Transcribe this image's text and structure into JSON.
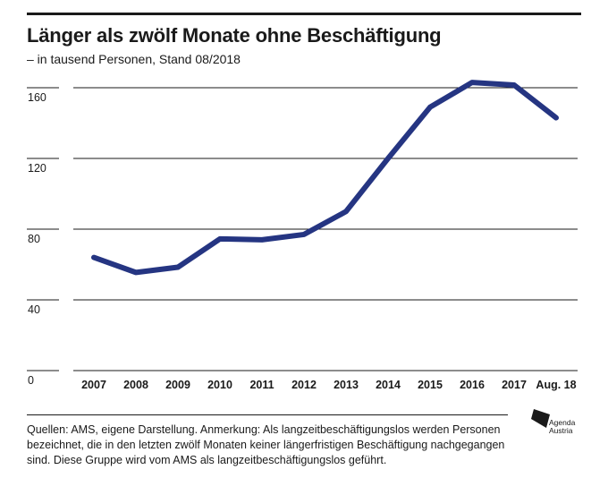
{
  "chart_data": {
    "type": "line",
    "title": "Länger als zwölf Monate ohne Beschäftigung",
    "subtitle": "– in tausend Personen, Stand 08/2018",
    "xlabel": "",
    "ylabel": "",
    "categories": [
      "2007",
      "2008",
      "2009",
      "2010",
      "2011",
      "2012",
      "2013",
      "2014",
      "2015",
      "2016",
      "2017",
      "Aug. 18"
    ],
    "series": [
      {
        "values": [
          64,
          55.5,
          58.5,
          74.5,
          74,
          77,
          90,
          120,
          149,
          163,
          161.5,
          143
        ],
        "color": "#253582"
      }
    ],
    "ylim": [
      0,
      160
    ],
    "yticks": [
      0,
      40,
      80,
      120,
      160
    ],
    "ytick_labels": [
      "0",
      "40",
      "80",
      "120",
      "160"
    ],
    "grid": true,
    "legend": "none"
  },
  "footnote": {
    "text": "Quellen: AMS, eigene Darstellung. Anmerkung: Als langzeitbeschäftigungslos werden Personen bezeichnet, die in den letzten zwölf Monaten keiner längerfristigen Beschäftigung nachgegangen sind. Diese Gruppe wird vom AMS als langzeitbeschäftigungslos geführt."
  },
  "logo": {
    "line1": "Agenda",
    "line2": "Austria"
  }
}
